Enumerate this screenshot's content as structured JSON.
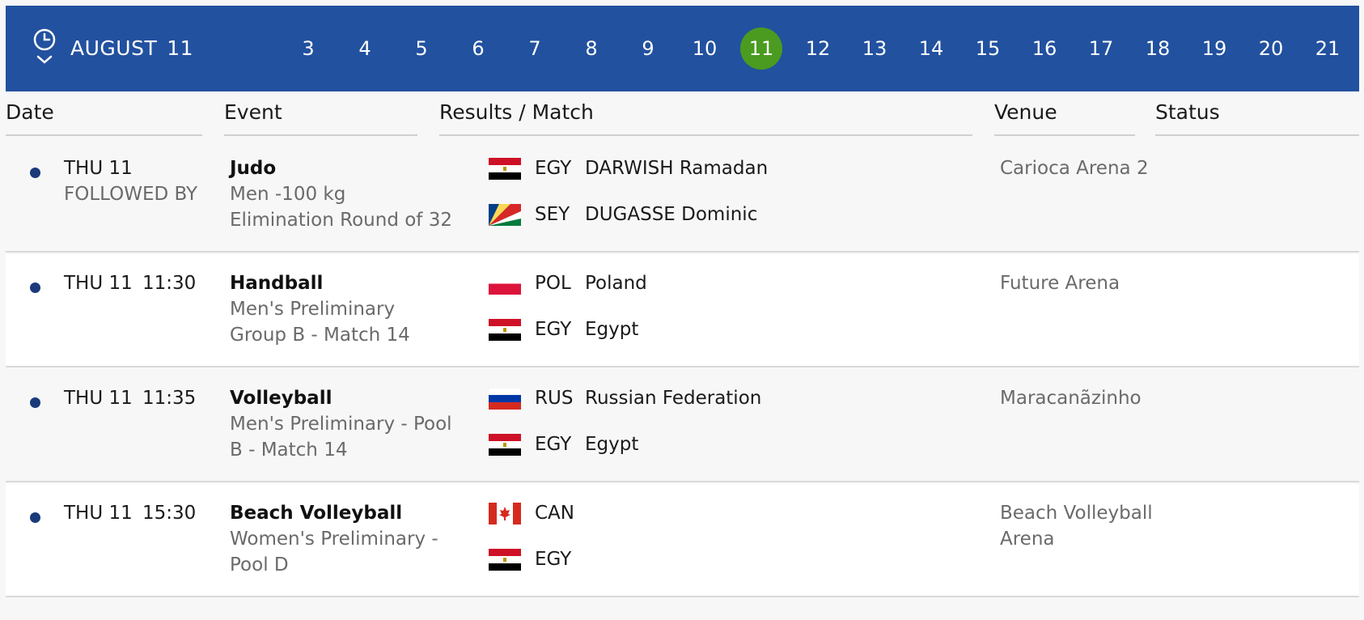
{
  "header": {
    "month_label": "AUGUST",
    "selected_day": "11",
    "days": [
      "3",
      "4",
      "5",
      "6",
      "7",
      "8",
      "9",
      "10",
      "11",
      "12",
      "13",
      "14",
      "15",
      "16",
      "17",
      "18",
      "19",
      "20",
      "21"
    ],
    "colors": {
      "bar": "#22519f",
      "active_day": "#4a9b20"
    }
  },
  "columns": {
    "date": "Date",
    "event": "Event",
    "results": "Results / Match",
    "venue": "Venue",
    "status": "Status"
  },
  "rows": [
    {
      "date": "THU 11",
      "time": "FOLLOWED BY",
      "sport": "Judo",
      "event_line1": "Men -100 kg",
      "event_line2": "Elimination Round of 32",
      "venue_line1": "Carioca Arena 2",
      "venue_line2": "",
      "competitors": [
        {
          "code": "EGY",
          "name": "DARWISH Ramadan",
          "flag_icon": "egypt-flag-icon"
        },
        {
          "code": "SEY",
          "name": "DUGASSE Dominic",
          "flag_icon": "seychelles-flag-icon"
        }
      ]
    },
    {
      "date": "THU 11",
      "time": "11:30",
      "sport": "Handball",
      "event_line1": "Men's Preliminary",
      "event_line2": "Group B - Match 14",
      "venue_line1": "Future Arena",
      "venue_line2": "",
      "competitors": [
        {
          "code": "POL",
          "name": "Poland",
          "flag_icon": "poland-flag-icon"
        },
        {
          "code": "EGY",
          "name": "Egypt",
          "flag_icon": "egypt-flag-icon"
        }
      ]
    },
    {
      "date": "THU 11",
      "time": "11:35",
      "sport": "Volleyball",
      "event_line1": "Men's Preliminary - Pool",
      "event_line2": "B - Match 14",
      "venue_line1": "Maracanãzinho",
      "venue_line2": "",
      "competitors": [
        {
          "code": "RUS",
          "name": "Russian Federation",
          "flag_icon": "russia-flag-icon"
        },
        {
          "code": "EGY",
          "name": "Egypt",
          "flag_icon": "egypt-flag-icon"
        }
      ]
    },
    {
      "date": "THU 11",
      "time": "15:30",
      "sport": "Beach Volleyball",
      "event_line1": "Women's Preliminary -",
      "event_line2": "Pool D",
      "venue_line1": "Beach Volleyball",
      "venue_line2": "Arena",
      "competitors": [
        {
          "code": "CAN",
          "name": "",
          "flag_icon": "canada-flag-icon"
        },
        {
          "code": "EGY",
          "name": "",
          "flag_icon": "egypt-flag-icon"
        }
      ]
    }
  ]
}
